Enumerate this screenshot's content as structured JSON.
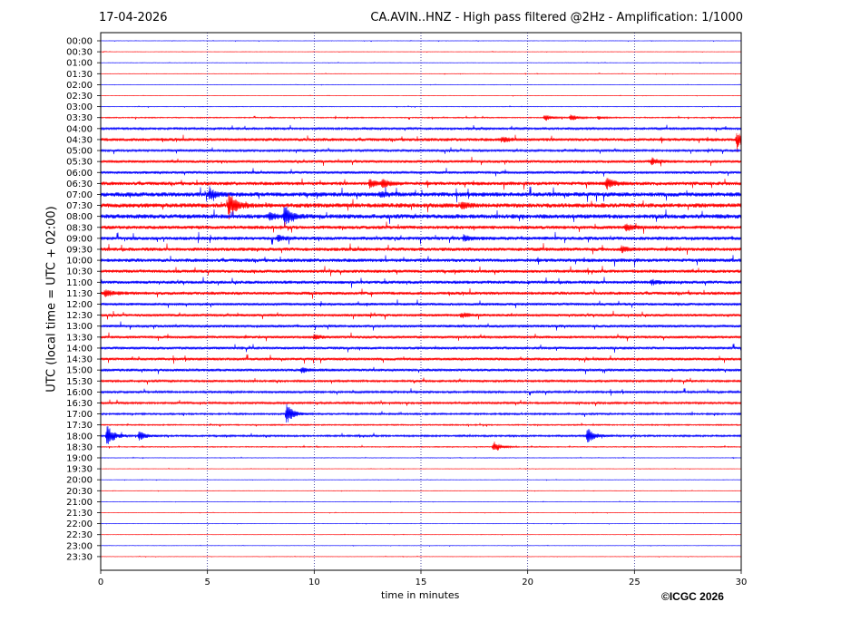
{
  "header": {
    "date": "17-04-2026",
    "title": "CA.AVIN..HNZ - High pass filtered @2Hz - Amplification: 1/1000"
  },
  "footer": {
    "copyright": "©ICGC 2026"
  },
  "colors": {
    "odd_trace": "#ff0000",
    "even_trace": "#0000ff",
    "grid": "#000080",
    "frame": "#000000"
  },
  "chart_data": {
    "type": "line",
    "xlabel": "time in minutes",
    "ylabel": "UTC (local time = UTC + 02:00)",
    "xlim": [
      0,
      30
    ],
    "x_ticks": [
      0,
      5,
      10,
      15,
      20,
      25,
      30
    ],
    "grid": "vertical dotted lines at x ticks",
    "rows": [
      "00:00",
      "00:30",
      "01:00",
      "01:30",
      "02:00",
      "02:30",
      "03:00",
      "03:30",
      "04:00",
      "04:30",
      "05:00",
      "05:30",
      "06:00",
      "06:30",
      "07:00",
      "07:30",
      "08:00",
      "08:30",
      "09:00",
      "09:30",
      "10:00",
      "10:30",
      "11:00",
      "11:30",
      "12:00",
      "12:30",
      "13:00",
      "13:30",
      "14:00",
      "14:30",
      "15:00",
      "15:30",
      "16:00",
      "16:30",
      "17:00",
      "17:30",
      "18:00",
      "18:30",
      "19:00",
      "19:30",
      "20:00",
      "20:30",
      "21:00",
      "21:30",
      "22:00",
      "22:30",
      "23:00",
      "23:30"
    ],
    "noise_level": [
      0.2,
      0.2,
      0.2,
      0.2,
      0.2,
      0.2,
      0.3,
      0.6,
      1.2,
      1.8,
      1.2,
      1.5,
      1.5,
      2.0,
      2.5,
      2.5,
      2.5,
      2.0,
      2.0,
      2.0,
      2.0,
      1.8,
      1.8,
      1.8,
      1.5,
      1.5,
      1.5,
      1.5,
      1.5,
      1.5,
      1.5,
      1.2,
      1.2,
      1.2,
      1.0,
      0.7,
      1.0,
      0.5,
      0.3,
      0.2,
      0.2,
      0.2,
      0.2,
      0.2,
      0.2,
      0.2,
      0.2,
      0.2
    ],
    "events": [
      {
        "row": "03:30",
        "t": 20.8,
        "amp": 4
      },
      {
        "row": "03:30",
        "t": 22.0,
        "amp": 4
      },
      {
        "row": "03:30",
        "t": 23.3,
        "amp": 2
      },
      {
        "row": "04:30",
        "t": 18.8,
        "amp": 3
      },
      {
        "row": "04:30",
        "t": 29.8,
        "amp": 9
      },
      {
        "row": "05:30",
        "t": 25.8,
        "amp": 4
      },
      {
        "row": "06:30",
        "t": 12.6,
        "amp": 5
      },
      {
        "row": "06:30",
        "t": 13.2,
        "amp": 4
      },
      {
        "row": "06:30",
        "t": 23.7,
        "amp": 6
      },
      {
        "row": "07:00",
        "t": 5.1,
        "amp": 6
      },
      {
        "row": "07:00",
        "t": 13.1,
        "amp": 3
      },
      {
        "row": "07:30",
        "t": 6.0,
        "amp": 14
      },
      {
        "row": "07:30",
        "t": 16.9,
        "amp": 4
      },
      {
        "row": "08:00",
        "t": 7.9,
        "amp": 4
      },
      {
        "row": "08:00",
        "t": 8.6,
        "amp": 10
      },
      {
        "row": "08:30",
        "t": 24.6,
        "amp": 4
      },
      {
        "row": "09:00",
        "t": 8.3,
        "amp": 3
      },
      {
        "row": "09:00",
        "t": 17.0,
        "amp": 3
      },
      {
        "row": "09:30",
        "t": 24.4,
        "amp": 3
      },
      {
        "row": "11:00",
        "t": 25.8,
        "amp": 3
      },
      {
        "row": "11:30",
        "t": 0.2,
        "amp": 4
      },
      {
        "row": "12:30",
        "t": 16.9,
        "amp": 3
      },
      {
        "row": "13:30",
        "t": 10.0,
        "amp": 3
      },
      {
        "row": "15:00",
        "t": 9.4,
        "amp": 3
      },
      {
        "row": "17:00",
        "t": 8.7,
        "amp": 12
      },
      {
        "row": "18:00",
        "t": 0.3,
        "amp": 12
      },
      {
        "row": "18:00",
        "t": 1.8,
        "amp": 5
      },
      {
        "row": "18:00",
        "t": 22.8,
        "amp": 9
      },
      {
        "row": "18:30",
        "t": 18.4,
        "amp": 7
      }
    ]
  }
}
